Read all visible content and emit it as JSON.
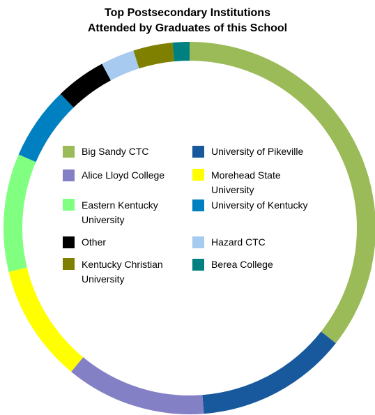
{
  "chart_data": {
    "type": "pie",
    "title_lines": [
      "Top Postsecondary Institutions",
      "Attended by Graduates of this School"
    ],
    "slices": [
      {
        "label": "Big Sandy CTC",
        "value": 36.5,
        "color": "#9BBB59"
      },
      {
        "label": "University of Pikeville",
        "value": 13.5,
        "color": "#17599C"
      },
      {
        "label": "Alice Lloyd College",
        "value": 12.5,
        "color": "#8480C6"
      },
      {
        "label": "Morehead State University",
        "value": 10.5,
        "color": "#FFFF00"
      },
      {
        "label": "Eastern Kentucky University",
        "value": 10.5,
        "color": "#80FF80"
      },
      {
        "label": "University of Kentucky",
        "value": 6.5,
        "color": "#0080C0"
      },
      {
        "label": "Other",
        "value": 4.5,
        "color": "#000000"
      },
      {
        "label": "Hazard CTC",
        "value": 3.0,
        "color": "#A6CAF0"
      },
      {
        "label": "Kentucky Christian University",
        "value": 3.5,
        "color": "#808000"
      },
      {
        "label": "Berea College",
        "value": 1.5,
        "color": "#008080"
      }
    ],
    "legend_order": [
      "Big Sandy CTC",
      "University of Pikeville",
      "Alice Lloyd College",
      "Morehead State University",
      "Eastern Kentucky University",
      "University of Kentucky",
      "Other",
      "Hazard CTC",
      "Kentucky Christian University",
      "Berea College"
    ],
    "legend_display": {
      "Big Sandy CTC": "Big Sandy CTC",
      "University of Pikeville": "University of Pikeville",
      "Alice Lloyd College": "Alice Lloyd College",
      "Morehead State University": "Morehead State\nUniversity",
      "Eastern Kentucky University": "Eastern Kentucky\nUniversity",
      "University of Kentucky": "University of Kentucky",
      "Other": "Other",
      "Hazard CTC": "Hazard CTC",
      "Kentucky Christian University": "Kentucky Christian\nUniversity",
      "Berea College": "Berea College"
    },
    "legend_placement": "center"
  }
}
